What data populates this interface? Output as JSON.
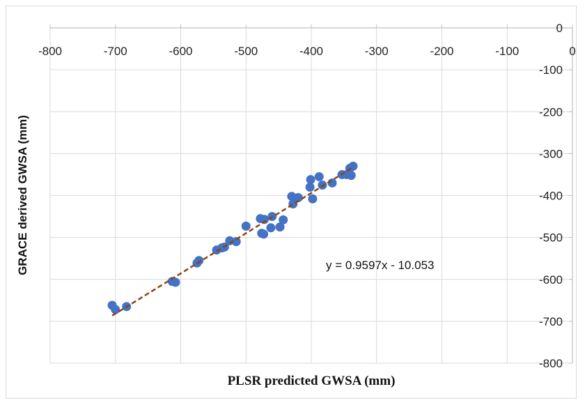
{
  "chart_data": {
    "type": "scatter",
    "title": "",
    "xlabel": "PLSR predicted GWSA (mm)",
    "ylabel": "GRACE derived GWSA (mm)",
    "xlim": [
      -800,
      0
    ],
    "ylim": [
      -800,
      0
    ],
    "x_ticks": [
      -800,
      -700,
      -600,
      -500,
      -400,
      -300,
      -200,
      -100,
      0
    ],
    "y_ticks": [
      0,
      -100,
      -200,
      -300,
      -400,
      -500,
      -600,
      -700,
      -800
    ],
    "x_tick_labels": [
      "-800",
      "-700",
      "-600",
      "-500",
      "-400",
      "-300",
      "-200",
      "-100",
      "0"
    ],
    "y_tick_labels": [
      "0",
      "-100",
      "-200",
      "-300",
      "-400",
      "-500",
      "-600",
      "-700",
      "-800"
    ],
    "grid": true,
    "point_color": "#4472c4",
    "trendline_color": "#8b4513",
    "trendline": {
      "slope": 0.9597,
      "intercept": -10.053,
      "x_range": [
        -705,
        -335
      ],
      "label": "y = 0.9597x - 10.053"
    },
    "points": [
      {
        "x": -705,
        "y": -662
      },
      {
        "x": -700,
        "y": -672
      },
      {
        "x": -683,
        "y": -665
      },
      {
        "x": -613,
        "y": -605
      },
      {
        "x": -608,
        "y": -607
      },
      {
        "x": -575,
        "y": -561
      },
      {
        "x": -572,
        "y": -555
      },
      {
        "x": -545,
        "y": -530
      },
      {
        "x": -537,
        "y": -525
      },
      {
        "x": -533,
        "y": -523
      },
      {
        "x": -525,
        "y": -508
      },
      {
        "x": -515,
        "y": -510
      },
      {
        "x": -500,
        "y": -473
      },
      {
        "x": -478,
        "y": -455
      },
      {
        "x": -476,
        "y": -490
      },
      {
        "x": -473,
        "y": -492
      },
      {
        "x": -472,
        "y": -457
      },
      {
        "x": -462,
        "y": -477
      },
      {
        "x": -460,
        "y": -450
      },
      {
        "x": -448,
        "y": -475
      },
      {
        "x": -443,
        "y": -458
      },
      {
        "x": -430,
        "y": -402
      },
      {
        "x": -428,
        "y": -420
      },
      {
        "x": -420,
        "y": -405
      },
      {
        "x": -402,
        "y": -380
      },
      {
        "x": -401,
        "y": -362
      },
      {
        "x": -398,
        "y": -408
      },
      {
        "x": -388,
        "y": -355
      },
      {
        "x": -383,
        "y": -375
      },
      {
        "x": -368,
        "y": -370
      },
      {
        "x": -353,
        "y": -350
      },
      {
        "x": -346,
        "y": -350
      },
      {
        "x": -341,
        "y": -335
      },
      {
        "x": -339,
        "y": -352
      },
      {
        "x": -336,
        "y": -330
      }
    ]
  }
}
